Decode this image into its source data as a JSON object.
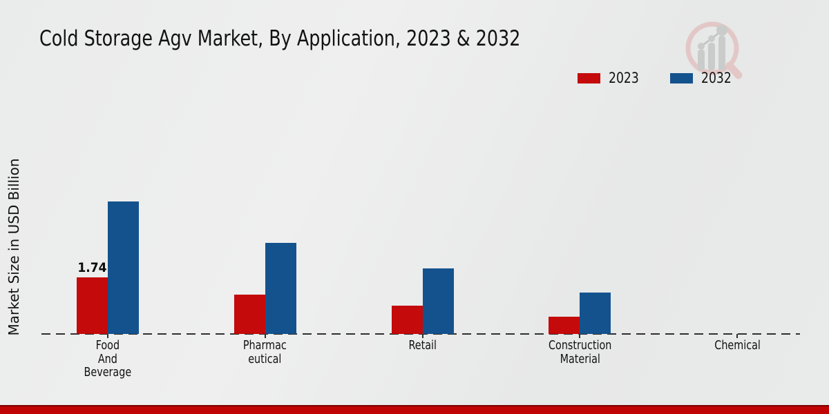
{
  "title": "Cold Storage Agv Market, By Application, 2023 & 2032",
  "ylabel": "Market Size in USD Billion",
  "legend": {
    "items": [
      {
        "label": "2023",
        "color": "#c40a0a"
      },
      {
        "label": "2032",
        "color": "#14528e"
      }
    ]
  },
  "chart_data": {
    "type": "bar",
    "title": "Cold Storage Agv Market, By Application, 2023 & 2032",
    "xlabel": "",
    "ylabel": "Market Size in USD Billion",
    "categories": [
      "Food\nAnd\nBeverage",
      "Pharmac\neutical",
      "Retail",
      "Construction\nMaterial",
      "Chemical"
    ],
    "series": [
      {
        "name": "2023",
        "color": "#c40a0a",
        "values": [
          1.74,
          1.21,
          0.87,
          0.53,
          0
        ]
      },
      {
        "name": "2032",
        "color": "#14528e",
        "values": [
          4.08,
          2.8,
          2.02,
          1.27,
          0
        ]
      }
    ],
    "data_labels": [
      {
        "series": 0,
        "category": 0,
        "text": "1.74"
      }
    ],
    "ylim": [
      0,
      4.5
    ],
    "grid": "off",
    "y_axis_ticks": "none",
    "x_axis_style": "dashed baseline with category ticks",
    "legend_position": "top-right"
  },
  "watermark": {
    "name": "market-research-logo"
  },
  "footer": {
    "bar_color": "#bf0404"
  }
}
